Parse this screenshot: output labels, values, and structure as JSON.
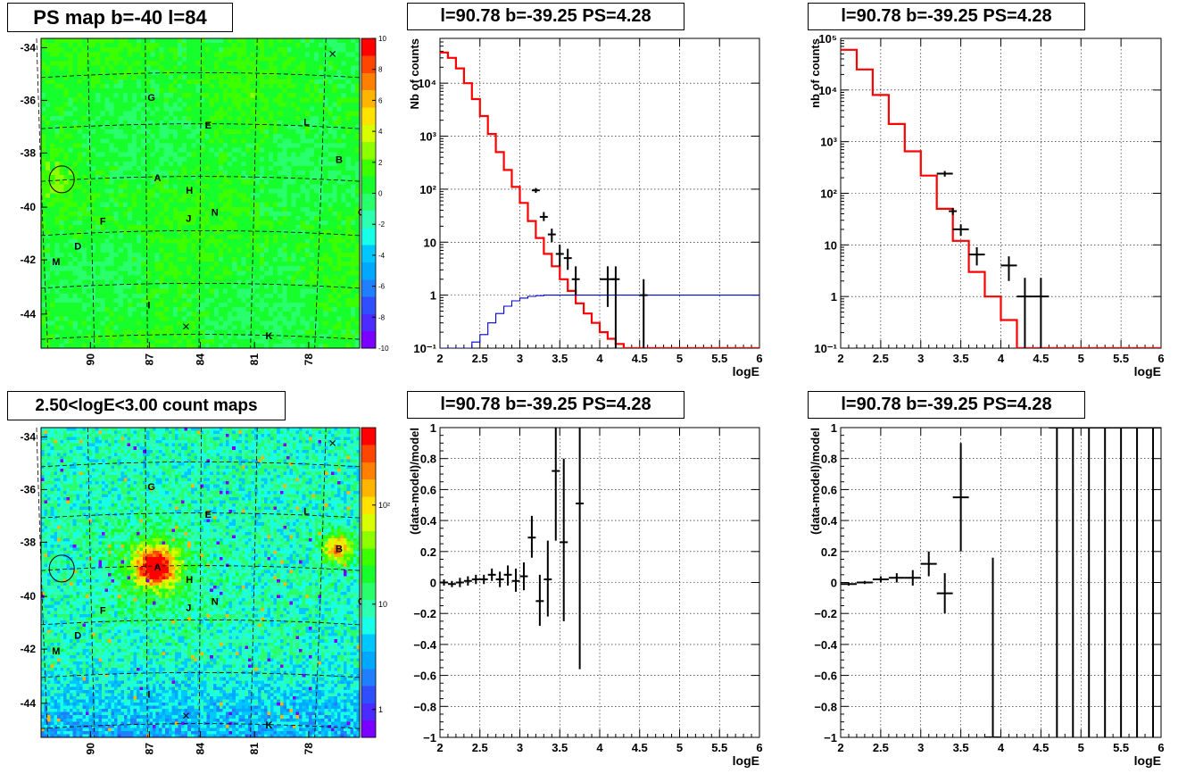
{
  "colors": {
    "model": "#ff0000",
    "background": "#0000cc",
    "data": "#000000"
  },
  "maps": [
    {
      "title": "PS map b=-40 l=84",
      "kind": "ps",
      "y_ticks": [
        "-34",
        "-36",
        "-38",
        "-40",
        "-42",
        "-44"
      ],
      "x_ticks": [
        "90",
        "87",
        "84",
        "81",
        "78"
      ],
      "colorbar_ticks": [
        "10",
        "8",
        "6",
        "4",
        "2",
        "0",
        "-2",
        "-4",
        "-6",
        "-8",
        "-10"
      ],
      "colorbar_range": [
        -10,
        10
      ],
      "sources": [
        "A",
        "B",
        "C",
        "D",
        "E",
        "F",
        "G",
        "H",
        "I",
        "J",
        "K",
        "L",
        "M",
        "N"
      ]
    },
    {
      "title": "2.50<logE<3.00 count maps",
      "kind": "counts",
      "y_ticks": [
        "-34",
        "-36",
        "-38",
        "-40",
        "-42",
        "-44"
      ],
      "x_ticks": [
        "90",
        "87",
        "84",
        "81",
        "78"
      ],
      "colorbar_ticks": [
        "10²",
        "10",
        "1"
      ],
      "sources": [
        "A",
        "B",
        "C",
        "D",
        "E",
        "F",
        "G",
        "H",
        "I",
        "J",
        "K",
        "L",
        "M",
        "N"
      ]
    }
  ],
  "chart_data": [
    {
      "type": "line",
      "title": "l=90.78 b=-39.25 PS=4.28",
      "xlabel": "logE",
      "ylabel": "Nb of counts",
      "xlim": [
        2,
        6
      ],
      "ylim": [
        0.1,
        70000
      ],
      "log_y": true,
      "grid": true,
      "x_ticks": [
        "2",
        "2.5",
        "3",
        "3.5",
        "4",
        "4.5",
        "5",
        "5.5",
        "6"
      ],
      "y_ticks": [
        "10⁻¹",
        "1",
        "10",
        "10²",
        "10³",
        "10⁴"
      ],
      "series": [
        {
          "style": "model",
          "edges": [
            2.0,
            2.1,
            2.2,
            2.3,
            2.4,
            2.5,
            2.6,
            2.7,
            2.8,
            2.9,
            3.0,
            3.1,
            3.2,
            3.3,
            3.4,
            3.5,
            3.6,
            3.7,
            3.8,
            3.9,
            4.0,
            4.1,
            4.2,
            4.3,
            4.4,
            4.5,
            4.6,
            4.7,
            4.8,
            4.9,
            5.0,
            5.1,
            5.2,
            5.3,
            5.4,
            5.5,
            5.6,
            5.7,
            5.8,
            5.9,
            6.0
          ],
          "values": [
            38000,
            30000,
            19000,
            10000,
            5000,
            2400,
            1100,
            500,
            230,
            110,
            55,
            25,
            12,
            6,
            3.5,
            2,
            1.2,
            0.7,
            0.45,
            0.3,
            0.2,
            0.15,
            0.12,
            0.1,
            0.1,
            0.1,
            0.1,
            0.1,
            0.1,
            0.1,
            0.1,
            0.1,
            0.1,
            0.1,
            0.1,
            0.1,
            0.1,
            0.1,
            0.1,
            0.1
          ]
        },
        {
          "style": "background",
          "edges": [
            2.0,
            2.1,
            2.2,
            2.3,
            2.4,
            2.5,
            2.6,
            2.7,
            2.8,
            2.9,
            3.0,
            3.1,
            3.2,
            3.3,
            3.4,
            3.5,
            3.6,
            3.7,
            3.8,
            3.9,
            4.0,
            4.1,
            4.2,
            4.3,
            4.4,
            4.5,
            4.6,
            4.7,
            4.8,
            4.9,
            5.0,
            5.1,
            5.2,
            5.3,
            5.4,
            5.5,
            5.6,
            5.7,
            5.8,
            5.9,
            6.0
          ],
          "values": [
            0.1,
            0.1,
            0.1,
            0.1,
            0.13,
            0.18,
            0.3,
            0.45,
            0.62,
            0.78,
            0.88,
            0.95,
            0.98,
            1,
            1,
            1,
            1,
            1,
            1,
            1,
            1,
            1,
            1,
            1,
            1,
            1,
            1,
            1,
            1,
            1,
            1,
            1,
            1,
            1,
            1,
            1,
            1,
            1,
            1,
            1
          ]
        },
        {
          "style": "data",
          "points": [
            {
              "x": 3.2,
              "y": 95,
              "ex": 0.05,
              "lo": 85,
              "hi": 105
            },
            {
              "x": 3.3,
              "y": 30,
              "ex": 0.05,
              "lo": 25,
              "hi": 37
            },
            {
              "x": 3.4,
              "y": 14,
              "ex": 0.05,
              "lo": 10,
              "hi": 18
            },
            {
              "x": 3.5,
              "y": 6,
              "ex": 0.05,
              "lo": 3.5,
              "hi": 9
            },
            {
              "x": 3.6,
              "y": 5,
              "ex": 0.05,
              "lo": 3,
              "hi": 7.5
            },
            {
              "x": 3.7,
              "y": 2,
              "ex": 0.05,
              "lo": 1,
              "hi": 3.5
            },
            {
              "x": 4.1,
              "y": 2,
              "ex": 0.1,
              "lo": 0.6,
              "hi": 3.5
            },
            {
              "x": 4.2,
              "y": 2,
              "ex": 0.05,
              "lo": 0.1,
              "hi": 3.5
            },
            {
              "x": 4.55,
              "y": 1,
              "ex": 0.05,
              "lo": 0.1,
              "hi": 2
            }
          ]
        }
      ]
    },
    {
      "type": "line",
      "title": "l=90.78 b=-39.25 PS=4.28",
      "xlabel": "logE",
      "ylabel": "nb of counts",
      "xlim": [
        2,
        6
      ],
      "ylim": [
        0.1,
        100000
      ],
      "log_y": true,
      "grid": true,
      "x_ticks": [
        "2",
        "2.5",
        "3",
        "3.5",
        "4",
        "4.5",
        "5",
        "5.5",
        "6"
      ],
      "y_ticks": [
        "10⁻¹",
        "1",
        "10",
        "10²",
        "10³",
        "10⁴",
        "10⁵"
      ],
      "series": [
        {
          "style": "model",
          "edges": [
            2.0,
            2.2,
            2.4,
            2.6,
            2.8,
            3.0,
            3.2,
            3.4,
            3.6,
            3.8,
            4.0,
            4.2,
            4.4,
            4.6,
            4.8,
            5.0,
            5.2,
            5.4,
            5.6,
            5.8,
            6.0
          ],
          "values": [
            60000,
            25000,
            8000,
            2200,
            650,
            220,
            50,
            12,
            3,
            1,
            0.35,
            0.1,
            0.1,
            0.1,
            0.1,
            0.1,
            0.1,
            0.1,
            0.1,
            0.1
          ]
        },
        {
          "style": "data",
          "points": [
            {
              "x": 3.3,
              "y": 240,
              "ex": 0.1,
              "lo": 210,
              "hi": 270
            },
            {
              "x": 3.4,
              "y": 45,
              "ex": 0.05,
              "lo": 38,
              "hi": 52
            },
            {
              "x": 3.5,
              "y": 20,
              "ex": 0.1,
              "lo": 15,
              "hi": 25
            },
            {
              "x": 3.7,
              "y": 6.5,
              "ex": 0.1,
              "lo": 4,
              "hi": 9
            },
            {
              "x": 4.1,
              "y": 4,
              "ex": 0.1,
              "lo": 2,
              "hi": 6
            },
            {
              "x": 4.3,
              "y": 1,
              "ex": 0.1,
              "lo": 0.1,
              "hi": 2.3
            },
            {
              "x": 4.5,
              "y": 1,
              "ex": 0.1,
              "lo": 0.1,
              "hi": 2.3
            }
          ]
        }
      ]
    },
    {
      "type": "scatter",
      "title": "l=90.78 b=-39.25 PS=4.28",
      "xlabel": "logE",
      "ylabel": "(data-model)/model",
      "xlim": [
        2,
        6
      ],
      "ylim": [
        -1,
        1
      ],
      "grid": true,
      "x_ticks": [
        "2",
        "2.5",
        "3",
        "3.5",
        "4",
        "4.5",
        "5",
        "5.5",
        "6"
      ],
      "y_ticks": [
        "−1",
        "−0.8",
        "−0.6",
        "−0.4",
        "−0.2",
        "0",
        "0.2",
        "0.4",
        "0.6",
        "0.8",
        "1"
      ],
      "series": [
        {
          "style": "data",
          "points": [
            {
              "x": 2.05,
              "y": 0,
              "ex": 0.05,
              "lo": -0.02,
              "hi": 0.02
            },
            {
              "x": 2.15,
              "y": -0.01,
              "ex": 0.05,
              "lo": -0.03,
              "hi": 0.01
            },
            {
              "x": 2.25,
              "y": 0,
              "ex": 0.05,
              "lo": -0.03,
              "hi": 0.03
            },
            {
              "x": 2.35,
              "y": 0.01,
              "ex": 0.05,
              "lo": -0.02,
              "hi": 0.04
            },
            {
              "x": 2.45,
              "y": 0.02,
              "ex": 0.05,
              "lo": -0.01,
              "hi": 0.05
            },
            {
              "x": 2.55,
              "y": 0.02,
              "ex": 0.05,
              "lo": -0.01,
              "hi": 0.05
            },
            {
              "x": 2.65,
              "y": 0.05,
              "ex": 0.05,
              "lo": 0.01,
              "hi": 0.09
            },
            {
              "x": 2.75,
              "y": 0.02,
              "ex": 0.05,
              "lo": -0.03,
              "hi": 0.07
            },
            {
              "x": 2.85,
              "y": 0.05,
              "ex": 0.05,
              "lo": -0.02,
              "hi": 0.11
            },
            {
              "x": 2.95,
              "y": 0.01,
              "ex": 0.05,
              "lo": -0.06,
              "hi": 0.09
            },
            {
              "x": 3.05,
              "y": 0.04,
              "ex": 0.05,
              "lo": -0.05,
              "hi": 0.13
            },
            {
              "x": 3.15,
              "y": 0.29,
              "ex": 0.05,
              "lo": 0.16,
              "hi": 0.43
            },
            {
              "x": 3.25,
              "y": -0.12,
              "ex": 0.05,
              "lo": -0.28,
              "hi": 0.05
            },
            {
              "x": 3.35,
              "y": 0.02,
              "ex": 0.05,
              "lo": -0.22,
              "hi": 0.27
            },
            {
              "x": 3.45,
              "y": 0.72,
              "ex": 0.05,
              "lo": 0.27,
              "hi": 1
            },
            {
              "x": 3.55,
              "y": 0.26,
              "ex": 0.05,
              "lo": -0.25,
              "hi": 0.8
            },
            {
              "x": 3.75,
              "y": 0.51,
              "ex": 0.05,
              "lo": -0.56,
              "hi": 1
            }
          ]
        }
      ]
    },
    {
      "type": "scatter",
      "title": "l=90.78 b=-39.25 PS=4.28",
      "xlabel": "logE",
      "ylabel": "(data-model)/model",
      "xlim": [
        2,
        6
      ],
      "ylim": [
        -1,
        1
      ],
      "grid": true,
      "x_ticks": [
        "2",
        "2.5",
        "3",
        "3.5",
        "4",
        "4.5",
        "5",
        "5.5",
        "6"
      ],
      "y_ticks": [
        "−1",
        "−0.8",
        "−0.6",
        "−0.4",
        "−0.2",
        "0",
        "0.2",
        "0.4",
        "0.6",
        "0.8",
        "1"
      ],
      "series": [
        {
          "style": "data",
          "points": [
            {
              "x": 2.1,
              "y": -0.01,
              "ex": 0.1,
              "lo": -0.02,
              "hi": 0.0
            },
            {
              "x": 2.3,
              "y": 0,
              "ex": 0.1,
              "lo": -0.01,
              "hi": 0.01
            },
            {
              "x": 2.5,
              "y": 0.02,
              "ex": 0.1,
              "lo": 0.0,
              "hi": 0.04
            },
            {
              "x": 2.7,
              "y": 0.03,
              "ex": 0.1,
              "lo": 0.0,
              "hi": 0.06
            },
            {
              "x": 2.9,
              "y": 0.03,
              "ex": 0.1,
              "lo": -0.02,
              "hi": 0.08
            },
            {
              "x": 3.1,
              "y": 0.12,
              "ex": 0.1,
              "lo": 0.04,
              "hi": 0.2
            },
            {
              "x": 3.3,
              "y": -0.07,
              "ex": 0.1,
              "lo": -0.2,
              "hi": 0.06
            },
            {
              "x": 3.5,
              "y": 0.55,
              "ex": 0.1,
              "lo": 0.2,
              "hi": 0.9
            },
            {
              "x": 3.9,
              "y": -1,
              "ex": 0.1,
              "lo": -1,
              "hi": 0.16
            },
            {
              "x": 4.7,
              "y": 1,
              "ex": 0.1,
              "lo": -1,
              "hi": 1
            },
            {
              "x": 4.9,
              "y": 1,
              "ex": 0.1,
              "lo": -1,
              "hi": 1
            },
            {
              "x": 5.1,
              "y": 1,
              "ex": 0.1,
              "lo": -1,
              "hi": 1
            },
            {
              "x": 5.3,
              "y": 1,
              "ex": 0.1,
              "lo": -1,
              "hi": 1
            },
            {
              "x": 5.5,
              "y": 1,
              "ex": 0.1,
              "lo": -1,
              "hi": 1
            },
            {
              "x": 5.7,
              "y": 1,
              "ex": 0.1,
              "lo": -1,
              "hi": 1
            },
            {
              "x": 5.9,
              "y": 1,
              "ex": 0.1,
              "lo": -1,
              "hi": 1
            }
          ]
        }
      ]
    }
  ]
}
